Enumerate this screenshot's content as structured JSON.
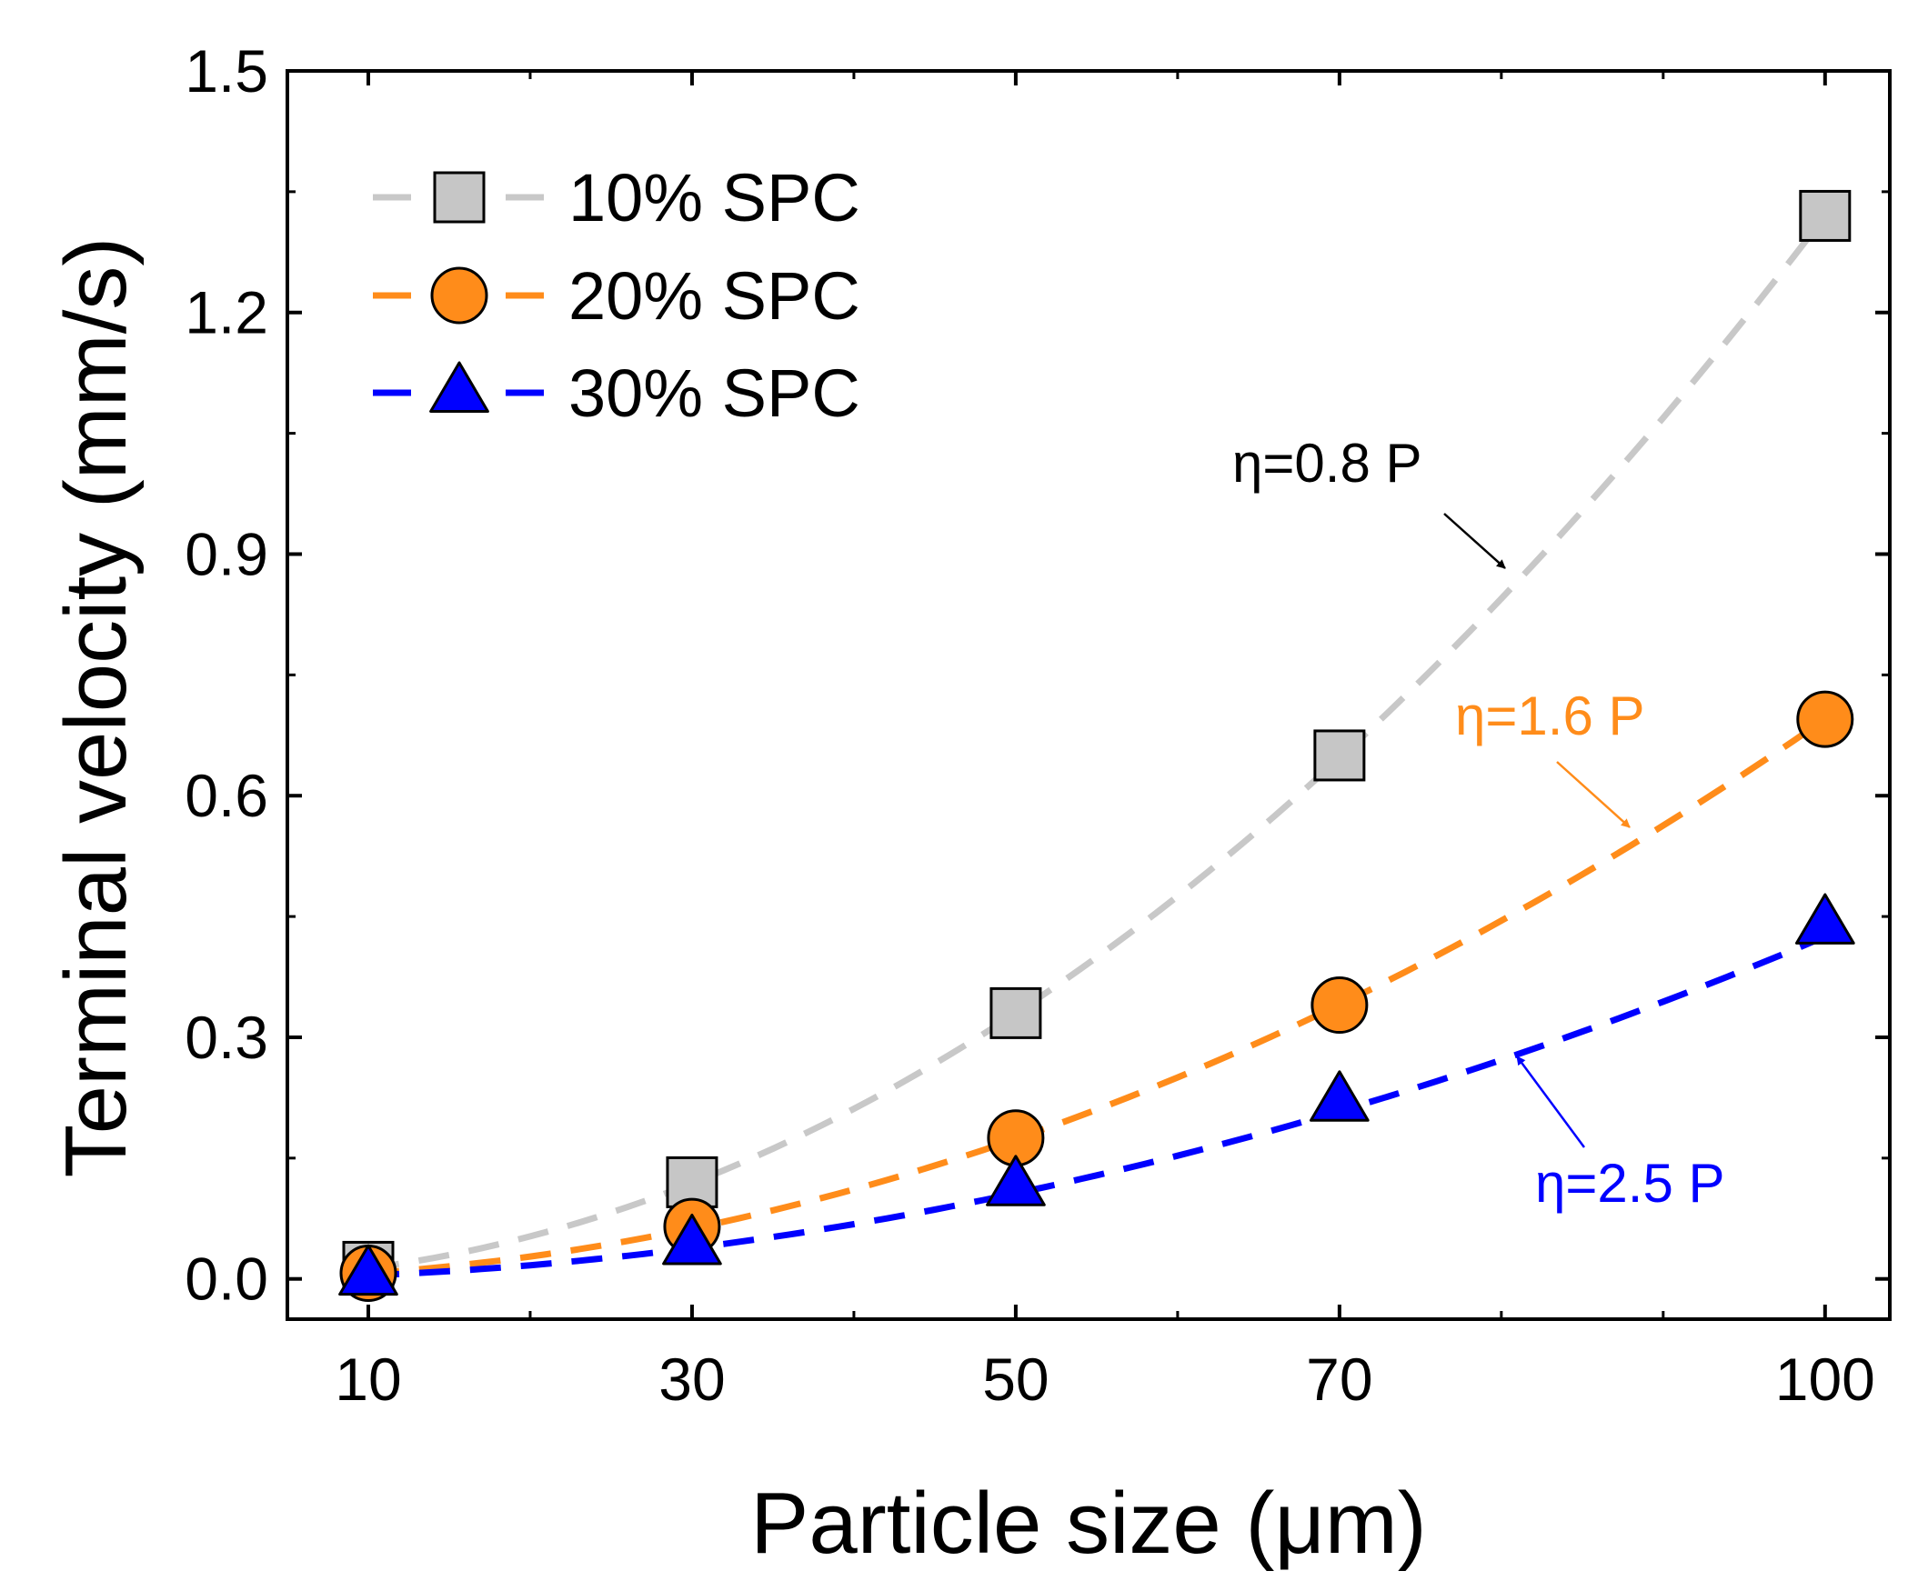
{
  "chart_data": {
    "type": "scatter",
    "xlabel": "Particle size (μm)",
    "ylabel": "Terminal velocity (mm/s)",
    "xlim": [
      5,
      104
    ],
    "ylim": [
      -0.05,
      1.5
    ],
    "xticks": [
      10,
      30,
      50,
      70,
      100
    ],
    "xtick_labels": [
      "10",
      "30",
      "50",
      "70",
      "100"
    ],
    "xminor_ticks": [
      20,
      40,
      60,
      80,
      90
    ],
    "yticks": [
      0.0,
      0.3,
      0.6,
      0.9,
      1.2,
      1.5
    ],
    "ytick_labels": [
      "0.0",
      "0.3",
      "0.6",
      "0.9",
      "1.2",
      "1.5"
    ],
    "yminor_ticks": [
      0.15,
      0.45,
      0.75,
      1.05,
      1.35
    ],
    "legend_position": "top-left",
    "series": [
      {
        "name": "10% SPC",
        "marker": "square",
        "color": "#c6c6c6",
        "line_color": "#c8c8c8",
        "x": [
          10,
          30,
          50,
          70,
          100
        ],
        "values": [
          0.015,
          0.12,
          0.33,
          0.65,
          1.32
        ],
        "fit_coefficient": 0.000132
      },
      {
        "name": "20% SPC",
        "marker": "circle",
        "color": "#ff8c1a",
        "line_color": "#ff8c1a",
        "x": [
          10,
          30,
          50,
          70,
          100
        ],
        "values": [
          0.007,
          0.065,
          0.175,
          0.34,
          0.695
        ],
        "fit_coefficient": 6.95e-05
      },
      {
        "name": "30% SPC",
        "marker": "triangle",
        "color": "#0000ff",
        "line_color": "#0000ff",
        "x": [
          10,
          30,
          50,
          70,
          100
        ],
        "values": [
          0.004,
          0.042,
          0.115,
          0.22,
          0.44
        ],
        "fit_coefficient": 4.25e-05
      }
    ],
    "annotations": [
      {
        "text": "η=0.8 P",
        "color": "#000000",
        "points_to": "10% SPC"
      },
      {
        "text": "η=1.6 P",
        "color": "#ff8c1a",
        "points_to": "20% SPC"
      },
      {
        "text": "η=2.5 P",
        "color": "#0000ff",
        "points_to": "30% SPC"
      }
    ]
  }
}
